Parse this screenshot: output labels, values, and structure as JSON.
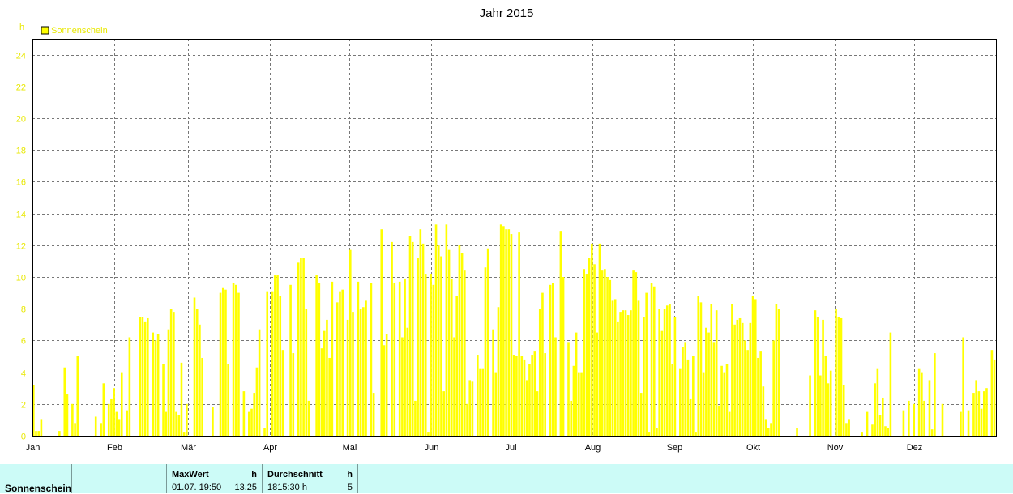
{
  "chart_data": {
    "type": "bar",
    "title": "Jahr 2015",
    "yunit": "h",
    "ylim": [
      0,
      25
    ],
    "yticks": [
      "0",
      "2",
      "4",
      "6",
      "8",
      "10",
      "12",
      "14",
      "16",
      "18",
      "20",
      "22",
      "24"
    ],
    "xticks": [
      "Jan",
      "Feb",
      "Mär",
      "Apr",
      "Mai",
      "Jun",
      "Jul",
      "Aug",
      "Sep",
      "Okt",
      "Nov",
      "Dez"
    ],
    "grid": true,
    "legend_position": "top-left",
    "series": [
      {
        "name": "Sonnenschein",
        "color": "#ffff00",
        "values": [
          3.2,
          0.3,
          0.3,
          1.0,
          0,
          0,
          0,
          0,
          0,
          0,
          0.3,
          0,
          4.3,
          2.6,
          0,
          2.0,
          0.8,
          5.0,
          0,
          0,
          0,
          0,
          0,
          0,
          1.2,
          0,
          0.8,
          3.3,
          0,
          2.0,
          2.3,
          3.0,
          1.5,
          1.0,
          4.0,
          0,
          1.6,
          6.2,
          0,
          0,
          0,
          7.5,
          7.5,
          7.2,
          7.4,
          0,
          6.5,
          6.0,
          6.4,
          0,
          4.5,
          1.5,
          6.7,
          8.0,
          7.8,
          1.5,
          1.3,
          4.6,
          0.2,
          2.0,
          0,
          0,
          8.7,
          8.0,
          7.0,
          4.9,
          0,
          0,
          0,
          1.8,
          0,
          0,
          9.0,
          9.3,
          9.2,
          4.5,
          0,
          9.6,
          9.5,
          9.0,
          0,
          2.8,
          0,
          1.5,
          1.7,
          2.7,
          4.3,
          6.7,
          0,
          0.5,
          9.1,
          0,
          9.1,
          10.1,
          10.1,
          8.8,
          5.4,
          0,
          0,
          9.5,
          5.2,
          0,
          10.9,
          11.2,
          11.2,
          8.0,
          2.2,
          0,
          0,
          10.1,
          9.6,
          5.5,
          6.6,
          7.3,
          4.9,
          9.7,
          0,
          8.4,
          9.1,
          9.2,
          0,
          7.3,
          11.7,
          7.8,
          0,
          9.7,
          8.0,
          8.1,
          8.5,
          0,
          9.6,
          2.7,
          0,
          0,
          13.0,
          5.7,
          6.4,
          0,
          12.2,
          9.6,
          0,
          9.7,
          6.2,
          9.9,
          6.8,
          12.6,
          12.2,
          2.2,
          11.2,
          13.0,
          12.1,
          10.2,
          0.2,
          10.2,
          9.5,
          13.3,
          12.0,
          11.3,
          2.8,
          13.3,
          11.7,
          9.9,
          6.2,
          8.8,
          12.0,
          11.5,
          10.4,
          2.0,
          3.5,
          3.4,
          0,
          5.1,
          4.2,
          4.2,
          10.6,
          11.8,
          0,
          6.7,
          4.0,
          8.1,
          13.3,
          13.2,
          13.0,
          13.0,
          12.7,
          5.1,
          5.0,
          12.8,
          5.0,
          4.8,
          3.5,
          4.5,
          5.1,
          5.3,
          2.8,
          8.0,
          9.0,
          5.2,
          0,
          9.5,
          9.6,
          6.2,
          0,
          12.9,
          10.0,
          0,
          5.9,
          2.2,
          4.4,
          6.5,
          4.0,
          4.0,
          10.5,
          10.2,
          11.2,
          12.1,
          10.8,
          6.5,
          12.1,
          10.4,
          10.5,
          10.0,
          9.8,
          8.5,
          8.6,
          7.2,
          7.8,
          7.9,
          7.9,
          7.6,
          7.9,
          10.4,
          10.3,
          8.5,
          2.7,
          7.5,
          9.0,
          0.2,
          9.6,
          9.4,
          0.5,
          8.0,
          6.6,
          8.0,
          8.2,
          8.3,
          4.5,
          7.5,
          0,
          4.2,
          5.6,
          5.9,
          4.8,
          2.3,
          5.0,
          0.2,
          8.8,
          8.4,
          4.0,
          6.8,
          6.5,
          8.3,
          5.9,
          7.9,
          1.9,
          4.4,
          4.0,
          4.5,
          1.5,
          8.3,
          7.0,
          7.3,
          7.4,
          7.1,
          6.0,
          5.4,
          7.1,
          8.8,
          8.6,
          4.9,
          5.3,
          3.1,
          1.0,
          0.5,
          0.8,
          6.0,
          8.3,
          8.0,
          0,
          0,
          0,
          0,
          0,
          0,
          0.5,
          0,
          0,
          0,
          0,
          3.8,
          0,
          7.9,
          7.5,
          3.8,
          7.3,
          5.0,
          3.3,
          4.1,
          0,
          8.0,
          7.5,
          7.4,
          3.2,
          0.8,
          1.0,
          0,
          0,
          0,
          0,
          0.2,
          0,
          1.5,
          0,
          0.7,
          3.3,
          4.2,
          1.3,
          2.4,
          0.6,
          0.5,
          6.5,
          0,
          0,
          0,
          0,
          1.6,
          0,
          2.2,
          0,
          2.0,
          0,
          4.2,
          4.0,
          2.2,
          0,
          3.5,
          0.4,
          5.2,
          0,
          0,
          2.0,
          0,
          0,
          0,
          0,
          0,
          0,
          1.5,
          6.2,
          0,
          1.6,
          0,
          2.7,
          3.5,
          2.8,
          1.7,
          2.8,
          3.0,
          0,
          5.4,
          4.8
        ]
      }
    ]
  },
  "stats": {
    "row_label": "Sonnenschein",
    "max_header": "MaxWert",
    "max_unit": "h",
    "max_datetime": "01.07.  19:50",
    "max_value": "13.25",
    "avg_header": "Durchschnitt",
    "avg_unit": "h",
    "avg_total": "1815:30 h",
    "avg_value": "5"
  }
}
